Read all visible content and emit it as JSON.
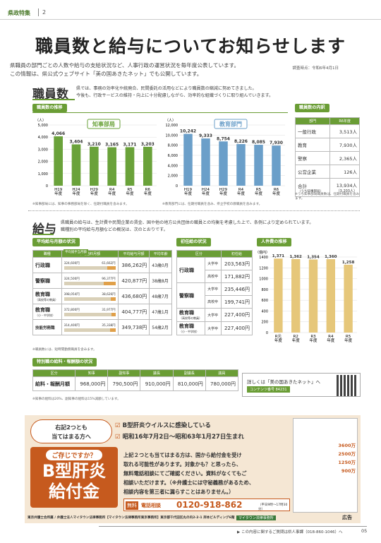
{
  "header": {
    "section": "県政特集",
    "page": "2"
  },
  "title": "職員数と給与についてお知らせします",
  "intro": [
    "県職員の部門ごとの人数や給与の支給状況など、人事行政の運営状況を毎年度公表しています。",
    "この情報は、県公式ウェブサイト「美の国あきたネット」でも公開しています。"
  ],
  "as_of": "調査時点：令和6年4月1日",
  "staff": {
    "heading": "職員数",
    "desc": [
      "県では、事務の効率化や統廃合、民間委託の活用などにより職員数の縮減に努めてきました。",
      "今後も、行政サービスの維持・向上に十分配慮しながら、効率的な組織づくりに取り組んでいきます。"
    ],
    "trend_tag": "職員数の推移",
    "unit": "（人）",
    "breakdown_tag": "職員数の内訳"
  },
  "chart_data": [
    {
      "type": "bar",
      "title": "知事部局",
      "categories": [
        "H19年度",
        "H24年度",
        "H29年度",
        "R4年度",
        "R5年度",
        "R6年度"
      ],
      "values": [
        4066,
        3404,
        3210,
        3165,
        3171,
        3203
      ],
      "value_labels": [
        "4,066",
        "3,404",
        "3,210",
        "3,165",
        "3,171",
        "3,203"
      ],
      "ylim": [
        0,
        5000
      ],
      "yticks": [
        "0",
        "1,000",
        "2,000",
        "3,000",
        "4,000",
        "5,000"
      ],
      "color": "#6aa23a"
    },
    {
      "type": "bar",
      "title": "教育部門",
      "categories": [
        "H19年度",
        "H24年度",
        "H29年度",
        "R4年度",
        "R5年度",
        "R6年度"
      ],
      "values": [
        10242,
        9333,
        8754,
        8226,
        8085,
        7930
      ],
      "value_labels": [
        "10,242",
        "9,333",
        "8,754",
        "8,226",
        "8,085",
        "7,930"
      ],
      "ylim": [
        0,
        12000
      ],
      "yticks": [
        "0",
        "2,000",
        "4,000",
        "6,000",
        "8,000",
        "10,000",
        "12,000"
      ],
      "color": "#6b9fc9"
    },
    {
      "type": "bar",
      "title": "人件費の推移",
      "categories": [
        "R元年度",
        "R2年度",
        "R3年度",
        "R4年度",
        "R5年度"
      ],
      "values": [
        1371,
        1362,
        1354,
        1360,
        1258
      ],
      "value_labels": [
        "1,371",
        "1,362",
        "1,354",
        "1,360",
        "1,258"
      ],
      "ylim": [
        0,
        1400
      ],
      "yticks": [
        "0",
        "200",
        "400",
        "600",
        "800",
        "1000",
        "1200",
        "1400"
      ],
      "unit": "（億円）",
      "color": "#e6c77a"
    }
  ],
  "chart_notes": [
    "※知事部局には、知事の事務部局を除く、任期付職員を含みます。",
    "※教育部門には、任期付職員を含み、県立学校の教職員を含みます。"
  ],
  "breakdown": {
    "headers": [
      "部門",
      "R6年度"
    ],
    "rows": [
      [
        "一般行政",
        "3,513人"
      ],
      [
        "教育",
        "7,930人"
      ],
      [
        "警察",
        "2,365人"
      ],
      [
        "公営企業",
        "126人"
      ]
    ],
    "total_label": "合計",
    "total_sub": "（うち知事部局）",
    "total": "13,934人",
    "total_paren": "（3,203人）",
    "note": "※うち知事部局職員数は、任期付職員を含みます。"
  },
  "salary": {
    "heading": "給与",
    "desc": [
      "県職員の給与は、生計費や民間企業の賃金、国や他の地方公共団体の職員との均衡を考慮した上で、条例により定められています。",
      "職種別の平均給与月額などの概況は、次のとおりです。"
    ],
    "avg_tag": "平均給与月額の状況",
    "avg_headers": [
      "職種",
      "平均給料月額",
      "平均諸手当月額",
      "平均給与月額",
      "平均年齢"
    ],
    "avg_rows": [
      {
        "label": "行政職",
        "sub": "",
        "base": "324,600円",
        "allow": "61,662円",
        "total": "386,262円",
        "age": "43歳0月",
        "frac": 0.84
      },
      {
        "label": "警察職",
        "sub": "",
        "base": "324,500円",
        "allow": "96,377円",
        "total": "420,877円",
        "age": "38歳8月",
        "frac": 0.77
      },
      {
        "label": "教育職",
        "sub": "（高校等の教員）",
        "base": "398,054円",
        "allow": "38,626円",
        "total": "436,680円",
        "age": "48歳7月",
        "frac": 0.91
      },
      {
        "label": "教育職",
        "sub": "（小・中学校）",
        "base": "372,800円",
        "allow": "31,977円",
        "total": "404,777円",
        "age": "47歳1月",
        "frac": 0.92
      },
      {
        "label": "技能労務職",
        "sub": "",
        "base": "314,400円",
        "allow": "35,338円",
        "total": "349,738円",
        "age": "54歳2月",
        "frac": 0.9
      }
    ],
    "avg_note": "※職員数には、短時間勤務職員を含みます。",
    "starting_tag": "初任給の状況",
    "starting_headers": [
      "区分",
      "",
      "初任給"
    ],
    "starting": [
      {
        "group": "行政職",
        "rows": [
          [
            "大学卒",
            "203,563円"
          ],
          [
            "高校卒",
            "171,882円"
          ]
        ]
      },
      {
        "group": "警察職",
        "rows": [
          [
            "大学卒",
            "235,446円"
          ],
          [
            "高校卒",
            "199,741円"
          ]
        ]
      },
      {
        "group": "教育職",
        "sub": "（高校等の教員）",
        "rows": [
          [
            "大学卒",
            "227,400円"
          ]
        ]
      },
      {
        "group": "教育職",
        "sub": "（小・中学校）",
        "rows": [
          [
            "大学卒",
            "227,400円"
          ]
        ]
      }
    ],
    "cost_tag": "人件費の推移"
  },
  "special": {
    "tag": "特別職の給料・報酬額の状況",
    "headers": [
      "区分",
      "知事",
      "副知事",
      "議長",
      "副議長",
      "議員"
    ],
    "row_label": "給料・報酬月額",
    "values": [
      "968,000円",
      "790,500円",
      "910,000円",
      "810,000円",
      "780,000円"
    ],
    "note": "※知事の給料は20%、副知事の給料は15%減額しています。"
  },
  "link": {
    "text": "詳しくは「美の国あきたネット」へ",
    "code": "コンテンツ番号 84231"
  },
  "ad": {
    "q_top": "右記2つとも",
    "q_bottom": "当てはまる方へ",
    "items": [
      "B型肝炎ウイルスに感染している",
      "昭和16年7月2日〜昭和63年1月27日生まれ"
    ],
    "know": "ご存じですか？",
    "big1": "B型肝炎",
    "big2": "給付金",
    "body": [
      "上記２つとも当てはまる方は、国から給付金を受け",
      "取れる可能性があります。対象かも？と思ったら、",
      "無料電話相談にてご確認ください。資料がなくてもご",
      "相談いただけます。（※弁護士には守秘義務があるため、",
      "相談内容を第三者に漏らすことはありません。）"
    ],
    "free": "無料",
    "phone_label": "電話相談",
    "phone": "0120-918-862",
    "hours": "（平日9時〜17時30分）",
    "firm": "マイタウン法律事務所",
    "side_amounts": [
      "3600万",
      "2500万",
      "1250万",
      "900万"
    ],
    "address": "東京弁護士会所属 / 弁護士法人マイタウン法律事務所【マイタウン法律事務所東京事務所】東京都千代田区丸の内2-2-1 岸本ビルディング6階",
    "ad_label": "広告"
  },
  "footer": {
    "text": "この内容に関するご質問は県人事課（018-860-1046）へ",
    "page": "05"
  }
}
